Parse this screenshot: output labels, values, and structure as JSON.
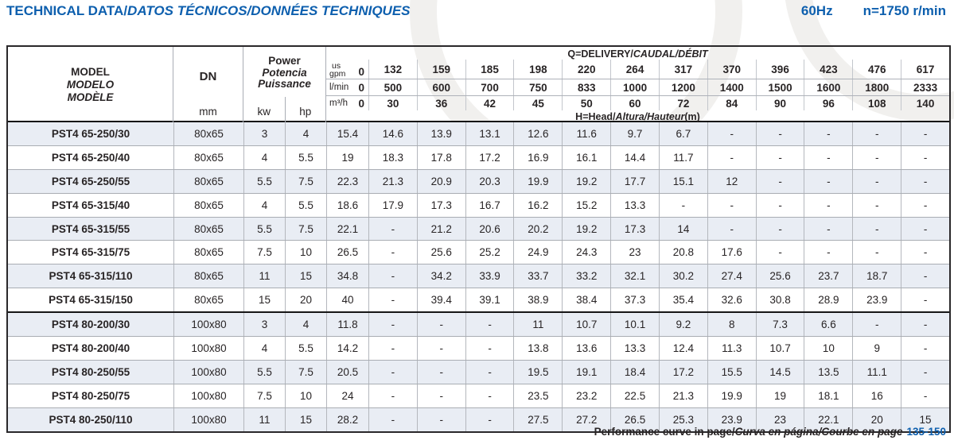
{
  "page": {
    "title_en": "TECHNICAL DATA/",
    "title_intl": "DATOS TÉCNICOS/DONNÉES TECHNIQUES",
    "frequency": "60Hz",
    "speed": "n=1750 r/min",
    "footer_en": "Performance curve in page/",
    "footer_intl": "Curva en página/Courbe en page",
    "footer_pages": "135-150"
  },
  "colors": {
    "accent_blue": "#0d5fae",
    "row_shade": "#e9edf4",
    "grid_line": "#a9adb3",
    "heavy_line": "#161616"
  },
  "table": {
    "model_lines": [
      "MODEL",
      "MODELO",
      "MODÈLE"
    ],
    "dn_label": "DN",
    "dn_unit": "mm",
    "power_lines": [
      "Power",
      "Potencia",
      "Puissance"
    ],
    "kw_label": "kw",
    "hp_label": "hp",
    "q_header_en": "Q=DELIVERY/",
    "q_header_intl": "CAUDAL/DÉBIT",
    "h_header_en": "H=Head/",
    "h_header_intl": "Altura/Hauteur",
    "h_header_unit": "(m)",
    "flow_units": [
      {
        "key": "usgpm",
        "label": "us gpm",
        "label_lines": [
          "us",
          "gpm"
        ],
        "values": [
          "0",
          "132",
          "159",
          "185",
          "198",
          "220",
          "264",
          "317",
          "370",
          "396",
          "423",
          "476",
          "617"
        ]
      },
      {
        "key": "lmin",
        "label": "l/min",
        "values": [
          "0",
          "500",
          "600",
          "700",
          "750",
          "833",
          "1000",
          "1200",
          "1400",
          "1500",
          "1600",
          "1800",
          "2333"
        ]
      },
      {
        "key": "m3h",
        "label": "m³/h",
        "values": [
          "0",
          "30",
          "36",
          "42",
          "45",
          "50",
          "60",
          "72",
          "84",
          "90",
          "96",
          "108",
          "140"
        ]
      }
    ],
    "group_break_index": 8,
    "rows": [
      {
        "model": "PST4 65-250/30",
        "dn": "80x65",
        "kw": "3",
        "hp": "4",
        "heads": [
          "15.4",
          "14.6",
          "13.9",
          "13.1",
          "12.6",
          "11.6",
          "9.7",
          "6.7",
          "-",
          "-",
          "-",
          "-",
          "-"
        ]
      },
      {
        "model": "PST4 65-250/40",
        "dn": "80x65",
        "kw": "4",
        "hp": "5.5",
        "heads": [
          "19",
          "18.3",
          "17.8",
          "17.2",
          "16.9",
          "16.1",
          "14.4",
          "11.7",
          "-",
          "-",
          "-",
          "-",
          "-"
        ]
      },
      {
        "model": "PST4 65-250/55",
        "dn": "80x65",
        "kw": "5.5",
        "hp": "7.5",
        "heads": [
          "22.3",
          "21.3",
          "20.9",
          "20.3",
          "19.9",
          "19.2",
          "17.7",
          "15.1",
          "12",
          "-",
          "-",
          "-",
          "-"
        ]
      },
      {
        "model": "PST4 65-315/40",
        "dn": "80x65",
        "kw": "4",
        "hp": "5.5",
        "heads": [
          "18.6",
          "17.9",
          "17.3",
          "16.7",
          "16.2",
          "15.2",
          "13.3",
          "-",
          "-",
          "-",
          "-",
          "-",
          "-"
        ]
      },
      {
        "model": "PST4 65-315/55",
        "dn": "80x65",
        "kw": "5.5",
        "hp": "7.5",
        "heads": [
          "22.1",
          "-",
          "21.2",
          "20.6",
          "20.2",
          "19.2",
          "17.3",
          "14",
          "-",
          "-",
          "-",
          "-",
          "-"
        ]
      },
      {
        "model": "PST4 65-315/75",
        "dn": "80x65",
        "kw": "7.5",
        "hp": "10",
        "heads": [
          "26.5",
          "-",
          "25.6",
          "25.2",
          "24.9",
          "24.3",
          "23",
          "20.8",
          "17.6",
          "-",
          "-",
          "-",
          "-"
        ]
      },
      {
        "model": "PST4 65-315/110",
        "dn": "80x65",
        "kw": "11",
        "hp": "15",
        "heads": [
          "34.8",
          "-",
          "34.2",
          "33.9",
          "33.7",
          "33.2",
          "32.1",
          "30.2",
          "27.4",
          "25.6",
          "23.7",
          "18.7",
          "-"
        ]
      },
      {
        "model": "PST4 65-315/150",
        "dn": "80x65",
        "kw": "15",
        "hp": "20",
        "heads": [
          "40",
          "-",
          "39.4",
          "39.1",
          "38.9",
          "38.4",
          "37.3",
          "35.4",
          "32.6",
          "30.8",
          "28.9",
          "23.9",
          "-"
        ]
      },
      {
        "model": "PST4 80-200/30",
        "dn": "100x80",
        "kw": "3",
        "hp": "4",
        "heads": [
          "11.8",
          "-",
          "-",
          "-",
          "11",
          "10.7",
          "10.1",
          "9.2",
          "8",
          "7.3",
          "6.6",
          "-",
          "-"
        ]
      },
      {
        "model": "PST4 80-200/40",
        "dn": "100x80",
        "kw": "4",
        "hp": "5.5",
        "heads": [
          "14.2",
          "-",
          "-",
          "-",
          "13.8",
          "13.6",
          "13.3",
          "12.4",
          "11.3",
          "10.7",
          "10",
          "9",
          "-"
        ]
      },
      {
        "model": "PST4 80-250/55",
        "dn": "100x80",
        "kw": "5.5",
        "hp": "7.5",
        "heads": [
          "20.5",
          "-",
          "-",
          "-",
          "19.5",
          "19.1",
          "18.4",
          "17.2",
          "15.5",
          "14.5",
          "13.5",
          "11.1",
          "-"
        ]
      },
      {
        "model": "PST4 80-250/75",
        "dn": "100x80",
        "kw": "7.5",
        "hp": "10",
        "heads": [
          "24",
          "-",
          "-",
          "-",
          "23.5",
          "23.2",
          "22.5",
          "21.3",
          "19.9",
          "19",
          "18.1",
          "16",
          "-"
        ]
      },
      {
        "model": "PST4 80-250/110",
        "dn": "100x80",
        "kw": "11",
        "hp": "15",
        "heads": [
          "28.2",
          "-",
          "-",
          "-",
          "27.5",
          "27.2",
          "26.5",
          "25.3",
          "23.9",
          "23",
          "22.1",
          "20",
          "15"
        ]
      }
    ]
  }
}
